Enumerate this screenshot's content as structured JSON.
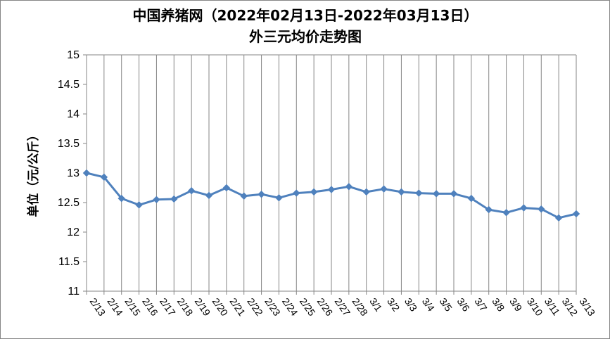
{
  "chart_data": {
    "type": "line",
    "title_line1": "中国养猪网（2022年02月13日-2022年03月13日）",
    "title_line2": "外三元均价走势图",
    "xlabel": "",
    "ylabel": "单位（元/公斤）",
    "ylim": [
      11,
      15
    ],
    "yticks": [
      "11",
      "11.5",
      "12",
      "12.5",
      "13",
      "13.5",
      "14",
      "14.5",
      "15"
    ],
    "ytick_values": [
      11,
      11.5,
      12,
      12.5,
      13,
      13.5,
      14,
      14.5,
      15
    ],
    "grid": "vertical",
    "legend": "none",
    "categories": [
      "2/13",
      "2/14",
      "2/15",
      "2/16",
      "2/17",
      "2/18",
      "2/19",
      "2/20",
      "2/21",
      "2/22",
      "2/23",
      "2/24",
      "2/25",
      "2/26",
      "2/27",
      "2/28",
      "3/1",
      "3/2",
      "3/3",
      "3/4",
      "3/5",
      "3/6",
      "3/7",
      "3/8",
      "3/9",
      "3/10",
      "3/11",
      "3/12",
      "3/13"
    ],
    "series": [
      {
        "values": [
          13.0,
          12.93,
          12.57,
          12.46,
          12.55,
          12.56,
          12.7,
          12.62,
          12.75,
          12.61,
          12.64,
          12.58,
          12.66,
          12.68,
          12.72,
          12.77,
          12.68,
          12.73,
          12.68,
          12.66,
          12.65,
          12.65,
          12.57,
          12.38,
          12.33,
          12.41,
          12.39,
          12.24,
          12.31
        ],
        "color": "#4F81BD"
      }
    ]
  }
}
